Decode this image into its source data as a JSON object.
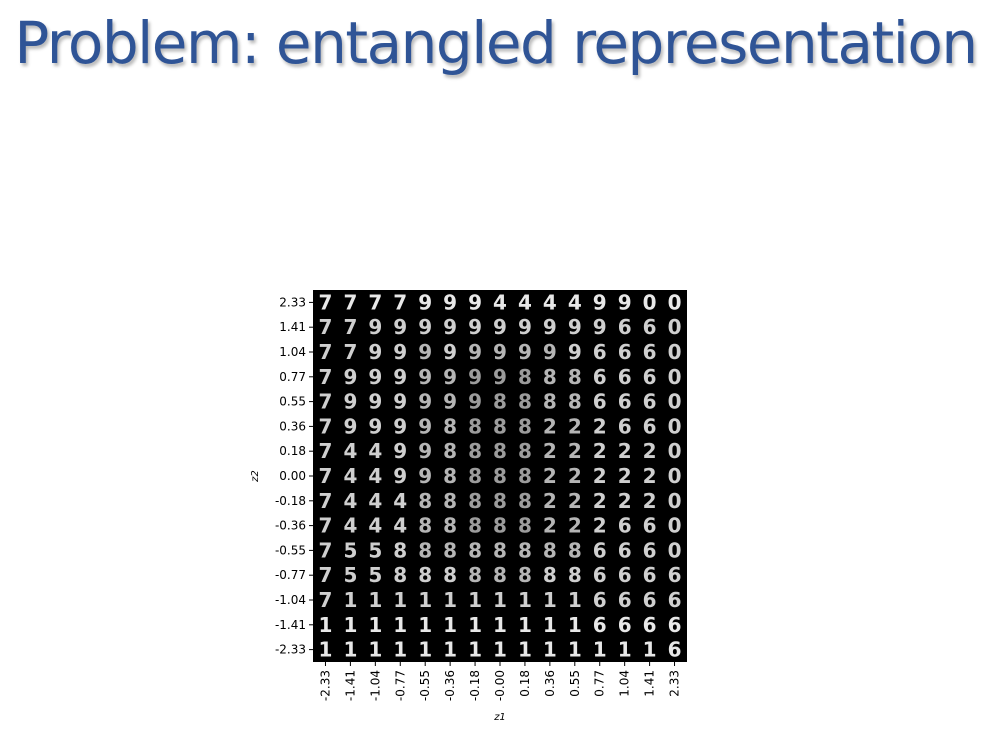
{
  "slide": {
    "title": "Problem: entangled representation"
  },
  "figure": {
    "background": "#000000",
    "digit_color": "#e8e8e8",
    "xlabel": "z1",
    "ylabel": "z2",
    "z1_ticks": [
      "-2.33",
      "-1.41",
      "-1.04",
      "-0.77",
      "-0.55",
      "-0.36",
      "-0.18",
      "-0.00",
      "0.18",
      "0.36",
      "0.55",
      "0.77",
      "1.04",
      "1.41",
      "2.33"
    ],
    "z2_ticks": [
      "2.33",
      "1.41",
      "1.04",
      "0.77",
      "0.55",
      "0.36",
      "0.18",
      "0.00",
      "-0.18",
      "-0.36",
      "-0.55",
      "-0.77",
      "-1.04",
      "-1.41",
      "-2.33"
    ],
    "digit_grid": [
      "777799944449900",
      "779999999999660",
      "779999999996660",
      "799999998886660",
      "799999988886660",
      "799998888222660",
      "744998888222220",
      "744998888222220",
      "744488888222220",
      "744488888222660",
      "755888888886660",
      "755888888886666",
      "711111111116666",
      "111111111116666",
      "111111111111116"
    ],
    "digit_intensity": [
      "999999999999999",
      "888888888888888",
      "888878777788888",
      "888877666778888",
      "888877666778888",
      "888877666778888",
      "888877666778888",
      "888877666778888",
      "888877666778888",
      "888877666778888",
      "888877777778888",
      "888888777888888",
      "888888888888888",
      "999999999999999",
      "999999999999999"
    ]
  }
}
